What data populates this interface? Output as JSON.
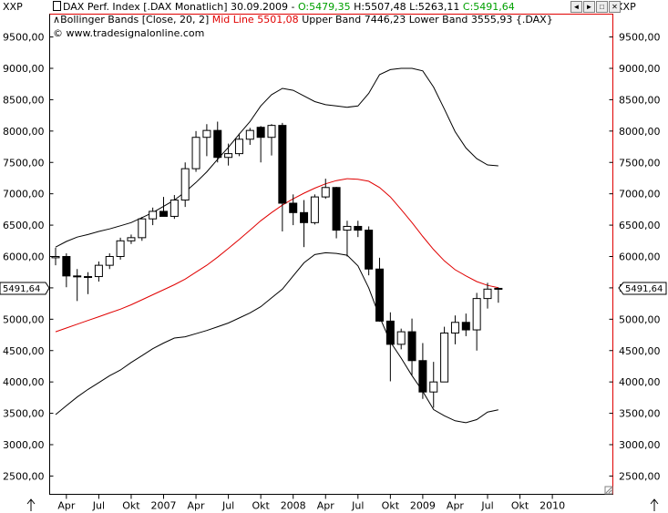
{
  "toolbar": {
    "symbol_left": "XXP",
    "symbol_right": "XXP",
    "line1": {
      "instrument": "DAX Perf. Index [.DAX  Monatlich] 30.09.2009 -",
      "open": "O:5479,35",
      "hl": "H:5507,48 L:5263,11",
      "close": "C:5491,64"
    },
    "line2": {
      "prefix": "Bollinger Bands [Close, 20, 2]",
      "mid": "Mid Line 5501,08",
      "rest": "Upper Band 7446,23 Lower Band 3555,93 {.DAX}"
    },
    "line3": "© www.tradesignalonline.com",
    "window_buttons": [
      "◄",
      "►",
      "□",
      "✕"
    ]
  },
  "price_tag": "5491,64",
  "colors": {
    "mid_line": "#e00000",
    "open_value": "#00a000",
    "close_value": "#00a000",
    "candle_up": "#ffffff",
    "candle_down": "#000000",
    "band": "#000000",
    "frame_red": "#e00000"
  },
  "chart_data": {
    "type": "candlestick",
    "period": "monthly",
    "x_labels": [
      "Apr",
      "Jul",
      "Okt",
      "2007",
      "Apr",
      "Jul",
      "Okt",
      "2008",
      "Apr",
      "Jul",
      "Okt",
      "2009",
      "Apr",
      "Jul",
      "Okt",
      "2010"
    ],
    "y_ticks": [
      "2500,00",
      "3000,00",
      "3500,00",
      "4000,00",
      "4500,00",
      "5000,00",
      "5500,00",
      "6000,00",
      "6500,00",
      "7000,00",
      "7500,00",
      "8000,00",
      "8500,00",
      "9000,00",
      "9500,00"
    ],
    "ylim": [
      2200,
      9800
    ],
    "candles": [
      {
        "o": 5980,
        "h": 6140,
        "l": 5860,
        "c": 6000
      },
      {
        "o": 6000,
        "h": 6050,
        "l": 5510,
        "c": 5690
      },
      {
        "o": 5690,
        "h": 5800,
        "l": 5290,
        "c": 5680
      },
      {
        "o": 5680,
        "h": 5750,
        "l": 5400,
        "c": 5680
      },
      {
        "o": 5680,
        "h": 5920,
        "l": 5600,
        "c": 5860
      },
      {
        "o": 5860,
        "h": 6050,
        "l": 5800,
        "c": 6000
      },
      {
        "o": 6000,
        "h": 6300,
        "l": 5950,
        "c": 6250
      },
      {
        "o": 6250,
        "h": 6350,
        "l": 6200,
        "c": 6300
      },
      {
        "o": 6300,
        "h": 6630,
        "l": 6250,
        "c": 6600
      },
      {
        "o": 6600,
        "h": 6780,
        "l": 6500,
        "c": 6720
      },
      {
        "o": 6720,
        "h": 6950,
        "l": 6680,
        "c": 6640
      },
      {
        "o": 6640,
        "h": 6980,
        "l": 6600,
        "c": 6900
      },
      {
        "o": 6900,
        "h": 7500,
        "l": 6790,
        "c": 7400
      },
      {
        "o": 7400,
        "h": 8000,
        "l": 7350,
        "c": 7900
      },
      {
        "o": 7900,
        "h": 8110,
        "l": 7600,
        "c": 8010
      },
      {
        "o": 8010,
        "h": 8150,
        "l": 7500,
        "c": 7580
      },
      {
        "o": 7580,
        "h": 7800,
        "l": 7450,
        "c": 7640
      },
      {
        "o": 7640,
        "h": 7960,
        "l": 7600,
        "c": 7870
      },
      {
        "o": 7870,
        "h": 8050,
        "l": 7780,
        "c": 8010
      },
      {
        "o": 8060,
        "h": 8080,
        "l": 7500,
        "c": 7900
      },
      {
        "o": 7900,
        "h": 8110,
        "l": 7610,
        "c": 8090
      },
      {
        "o": 8090,
        "h": 8130,
        "l": 6400,
        "c": 6850
      },
      {
        "o": 6850,
        "h": 6990,
        "l": 6500,
        "c": 6700
      },
      {
        "o": 6700,
        "h": 6900,
        "l": 6150,
        "c": 6540
      },
      {
        "o": 6540,
        "h": 6990,
        "l": 6510,
        "c": 6950
      },
      {
        "o": 6950,
        "h": 7240,
        "l": 6920,
        "c": 7100
      },
      {
        "o": 7100,
        "h": 7110,
        "l": 6290,
        "c": 6420
      },
      {
        "o": 6420,
        "h": 6570,
        "l": 6000,
        "c": 6480
      },
      {
        "o": 6480,
        "h": 6570,
        "l": 6310,
        "c": 6420
      },
      {
        "o": 6420,
        "h": 6480,
        "l": 5700,
        "c": 5800
      },
      {
        "o": 5800,
        "h": 5980,
        "l": 4960,
        "c": 4970
      },
      {
        "o": 4970,
        "h": 5110,
        "l": 4010,
        "c": 4600
      },
      {
        "o": 4600,
        "h": 4850,
        "l": 4520,
        "c": 4800
      },
      {
        "o": 4800,
        "h": 5010,
        "l": 4110,
        "c": 4340
      },
      {
        "o": 4340,
        "h": 4620,
        "l": 3730,
        "c": 3840
      },
      {
        "o": 3840,
        "h": 4320,
        "l": 3590,
        "c": 4000
      },
      {
        "o": 4000,
        "h": 4880,
        "l": 4060,
        "c": 4780
      },
      {
        "o": 4780,
        "h": 5060,
        "l": 4600,
        "c": 4950
      },
      {
        "o": 4950,
        "h": 5090,
        "l": 4730,
        "c": 4830
      },
      {
        "o": 4830,
        "h": 5420,
        "l": 4500,
        "c": 5330
      },
      {
        "o": 5330,
        "h": 5580,
        "l": 5170,
        "c": 5480
      },
      {
        "o": 5479,
        "h": 5507,
        "l": 5263,
        "c": 5492
      }
    ],
    "mid_line": [
      4800,
      4860,
      4920,
      4980,
      5040,
      5100,
      5160,
      5230,
      5310,
      5390,
      5470,
      5550,
      5640,
      5750,
      5860,
      5990,
      6130,
      6270,
      6420,
      6570,
      6700,
      6820,
      6920,
      7010,
      7090,
      7160,
      7210,
      7240,
      7230,
      7200,
      7100,
      6950,
      6750,
      6540,
      6320,
      6110,
      5930,
      5790,
      5690,
      5600,
      5540,
      5501
    ],
    "upper_band": [
      6150,
      6240,
      6310,
      6350,
      6400,
      6440,
      6490,
      6540,
      6620,
      6700,
      6800,
      6900,
      7030,
      7180,
      7350,
      7550,
      7740,
      7950,
      8150,
      8400,
      8580,
      8680,
      8650,
      8560,
      8470,
      8420,
      8400,
      8380,
      8400,
      8600,
      8900,
      8980,
      9000,
      9000,
      8960,
      8700,
      8350,
      7990,
      7730,
      7560,
      7460,
      7446
    ],
    "lower_band": [
      3480,
      3620,
      3760,
      3880,
      3990,
      4100,
      4190,
      4310,
      4420,
      4530,
      4620,
      4700,
      4720,
      4770,
      4820,
      4880,
      4940,
      5020,
      5100,
      5200,
      5340,
      5480,
      5690,
      5900,
      6030,
      6060,
      6050,
      6020,
      5850,
      5500,
      5040,
      4640,
      4380,
      4100,
      3850,
      3560,
      3460,
      3380,
      3350,
      3400,
      3520,
      3556
    ],
    "grid": false,
    "legend": "top-left"
  }
}
